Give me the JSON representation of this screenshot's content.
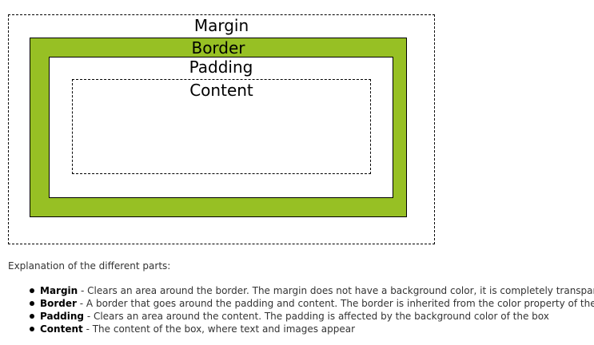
{
  "diagram": {
    "margin_label": "Margin",
    "border_label": "Border",
    "padding_label": "Padding",
    "content_label": "Content",
    "colors": {
      "border_fill": "#97c024",
      "padding_fill": "#ffffff",
      "outline": "#000000"
    }
  },
  "explanation": {
    "intro": "Explanation of the different parts:",
    "items": [
      {
        "term": "Margin",
        "desc": " - Clears an area around the border. The margin does not have a background color, it is completely transparent"
      },
      {
        "term": "Border",
        "desc": " - A border that goes around the padding and content. The border is inherited from the color property of the box"
      },
      {
        "term": "Padding",
        "desc": " - Clears an area around the content. The padding is affected by the background color of the box"
      },
      {
        "term": "Content",
        "desc": " - The content of the box, where text and images appear"
      }
    ]
  }
}
